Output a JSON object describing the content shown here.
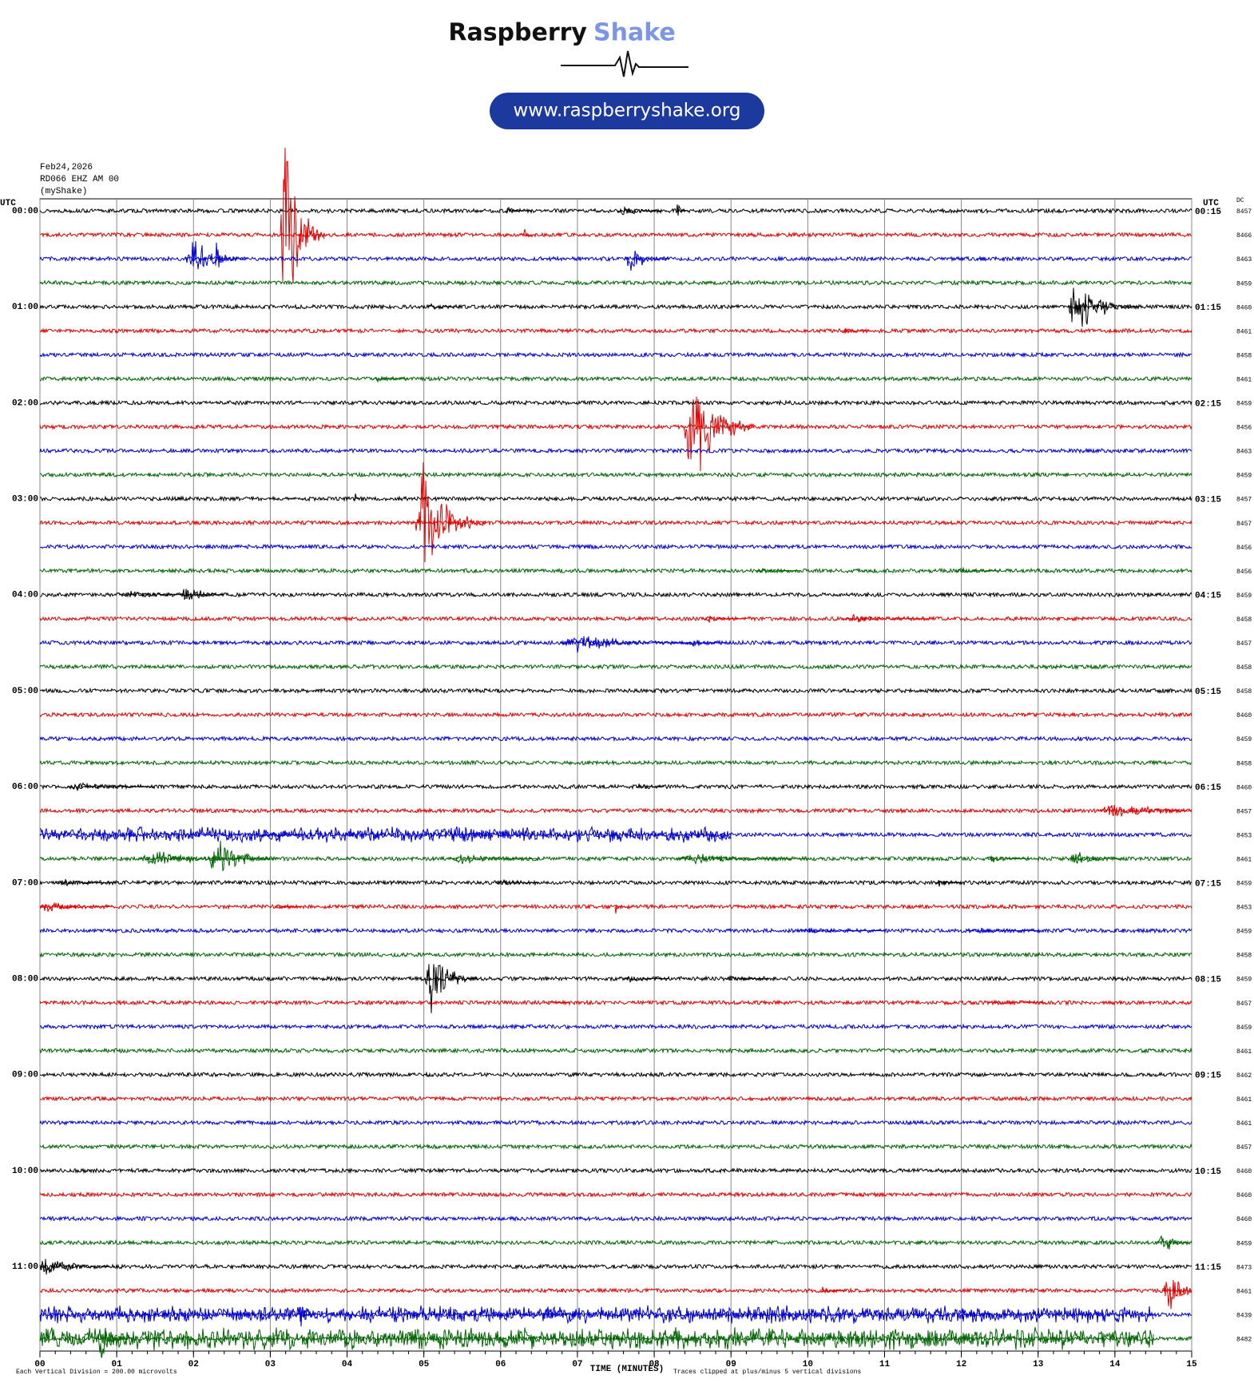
{
  "chart_data": {
    "type": "helicorder",
    "brand": [
      "Raspberry",
      "Shake"
    ],
    "url": "www.raspberryshake.org",
    "header": [
      "Feb24,2026",
      "RD066 EHZ AM 00",
      "(myShake)"
    ],
    "left_axis_title": "UTC",
    "right_axis_title": "UTC",
    "dc_title": "DC",
    "xlabel": "TIME (MINUTES)",
    "footer_left": "Each Vertical Division =  200.00 microvolts",
    "footer_right": "Traces clipped at plus/minus 5 vertical divisions",
    "xlim": [
      0,
      15
    ],
    "xticks": [
      {
        "value": 0,
        "label": "00"
      },
      {
        "value": 1,
        "label": "01"
      },
      {
        "value": 2,
        "label": "02"
      },
      {
        "value": 3,
        "label": "03"
      },
      {
        "value": 4,
        "label": "04"
      },
      {
        "value": 5,
        "label": "05"
      },
      {
        "value": 6,
        "label": "06"
      },
      {
        "value": 7,
        "label": "07"
      },
      {
        "value": 8,
        "label": "08"
      },
      {
        "value": 9,
        "label": "09"
      },
      {
        "value": 10,
        "label": "10"
      },
      {
        "value": 11,
        "label": "11"
      },
      {
        "value": 12,
        "label": "12"
      },
      {
        "value": 13,
        "label": "13"
      },
      {
        "value": 14,
        "label": "14"
      },
      {
        "value": 15,
        "label": "15"
      }
    ],
    "clip": 5,
    "noise": 0.08,
    "colors": [
      "#000000",
      "#e00000",
      "#0000d0",
      "#006400"
    ],
    "hour_labels": [
      "00:00",
      "01:00",
      "02:00",
      "03:00",
      "04:00",
      "05:00",
      "06:00",
      "07:00",
      "08:00",
      "09:00",
      "10:00",
      "11:00"
    ],
    "end_labels": [
      "00:15",
      "01:15",
      "02:15",
      "03:15",
      "04:15",
      "05:15",
      "06:15",
      "07:15",
      "08:15",
      "09:15",
      "10:15",
      "11:15"
    ],
    "dc": [
      8457,
      8466,
      8463,
      8459,
      8460,
      8461,
      8458,
      8461,
      8459,
      8456,
      8463,
      8459,
      8457,
      8457,
      8456,
      8456,
      8459,
      8458,
      8457,
      8458,
      8458,
      8460,
      8459,
      8458,
      8460,
      8457,
      8453,
      8461,
      8459,
      8453,
      8459,
      8458,
      8459,
      8457,
      8459,
      8461,
      8462,
      8461,
      8461,
      8457,
      8460,
      8460,
      8460,
      8459,
      8473,
      8461,
      8439,
      8482
    ],
    "traces": [
      {
        "bursts": [
          [
            6.1,
            0.3,
            0.3
          ],
          [
            7.6,
            0.35,
            0.5
          ],
          [
            8.3,
            0.5,
            0.1
          ]
        ]
      },
      {
        "bursts": [
          [
            3.2,
            5,
            0.5
          ],
          [
            6.3,
            0.5,
            0.1
          ]
        ]
      },
      {
        "bursts": [
          [
            2.0,
            1.0,
            0.7
          ],
          [
            2.3,
            1.6,
            0.1
          ],
          [
            7.7,
            0.8,
            0.5
          ]
        ]
      },
      {
        "bursts": []
      },
      {
        "bursts": [
          [
            5.1,
            0.2,
            0.3
          ],
          [
            13.5,
            1.5,
            0.8
          ]
        ]
      },
      {
        "bursts": [
          [
            10.5,
            0.15,
            0.3
          ]
        ]
      },
      {
        "bursts": []
      },
      {
        "bursts": [
          [
            4.4,
            0.15,
            0.4
          ]
        ]
      },
      {
        "bursts": []
      },
      {
        "bursts": [
          [
            8.5,
            3,
            0.8
          ]
        ]
      },
      {
        "bursts": []
      },
      {
        "bursts": []
      },
      {
        "bursts": [
          [
            4.1,
            0.4,
            0.05
          ]
        ]
      },
      {
        "bursts": [
          [
            5.0,
            3,
            0.8
          ]
        ]
      },
      {
        "bursts": []
      },
      {
        "bursts": [
          [
            9.4,
            0.15,
            0.5
          ],
          [
            12.0,
            0.15,
            0.5
          ]
        ]
      },
      {
        "bursts": [
          [
            1.2,
            0.2,
            1
          ],
          [
            1.9,
            0.6,
            0.5
          ]
        ]
      },
      {
        "bursts": [
          [
            8.7,
            0.2,
            0.5
          ],
          [
            10.6,
            0.25,
            1
          ]
        ]
      },
      {
        "bursts": [
          [
            7.0,
            0.5,
            1.5
          ],
          [
            8.5,
            0.2,
            0.5
          ]
        ]
      },
      {
        "bursts": []
      },
      {
        "bursts": []
      },
      {
        "bursts": []
      },
      {
        "bursts": []
      },
      {
        "bursts": []
      },
      {
        "bursts": [
          [
            0.5,
            0.25,
            1
          ],
          [
            7.8,
            0.2,
            0.3
          ]
        ]
      },
      {
        "bursts": [
          [
            14,
            0.4,
            1.5
          ]
        ]
      },
      {
        "bursts": [
          [
            0,
            0.35,
            9
          ],
          [
            2.9,
            0.3,
            0.5
          ]
        ]
      },
      {
        "bursts": [
          [
            1.5,
            0.4,
            1.5
          ],
          [
            2.3,
            1,
            0.8
          ],
          [
            5.5,
            0.3,
            1
          ],
          [
            8.5,
            0.3,
            1.5
          ],
          [
            12.4,
            0.2,
            0.5
          ],
          [
            13.5,
            0.4,
            0.6
          ]
        ]
      },
      {
        "bursts": [
          [
            0.3,
            0.2,
            0.7
          ],
          [
            6.0,
            0.2,
            0.5
          ],
          [
            11.7,
            0.2,
            0.3
          ]
        ]
      },
      {
        "bursts": [
          [
            0.1,
            0.3,
            0.8
          ],
          [
            3.1,
            0.15,
            0.3
          ],
          [
            7.5,
            0.6,
            0.05
          ]
        ]
      },
      {
        "bursts": [
          [
            10,
            0.15,
            1
          ],
          [
            12.2,
            0.15,
            0.8
          ]
        ]
      },
      {
        "bursts": []
      },
      {
        "bursts": [
          [
            5.1,
            1.5,
            0.6
          ],
          [
            7.7,
            0.2,
            0.5
          ],
          [
            9.0,
            0.15,
            0.5
          ]
        ]
      },
      {
        "bursts": [
          [
            6.6,
            0.1,
            0.3
          ],
          [
            12.5,
            0.15,
            0.6
          ]
        ]
      },
      {
        "bursts": []
      },
      {
        "bursts": []
      },
      {
        "bursts": []
      },
      {
        "bursts": []
      },
      {
        "bursts": []
      },
      {
        "bursts": []
      },
      {
        "bursts": []
      },
      {
        "bursts": []
      },
      {
        "bursts": []
      },
      {
        "bursts": [
          [
            14.6,
            0.6,
            0.5
          ]
        ]
      },
      {
        "bursts": [
          [
            0.1,
            0.6,
            0.8
          ]
        ]
      },
      {
        "bursts": [
          [
            10.2,
            0.2,
            0.3
          ],
          [
            14.7,
            1,
            0.5
          ]
        ]
      },
      {
        "bursts": [
          [
            0.5,
            0.4,
            14
          ],
          [
            3.4,
            0.6,
            0.2
          ],
          [
            6.6,
            0.5,
            0.4
          ],
          [
            12,
            0.6,
            0.3
          ]
        ]
      },
      {
        "bursts": [
          [
            0.5,
            0.5,
            14
          ],
          [
            0.8,
            1,
            0.4
          ]
        ]
      }
    ]
  }
}
